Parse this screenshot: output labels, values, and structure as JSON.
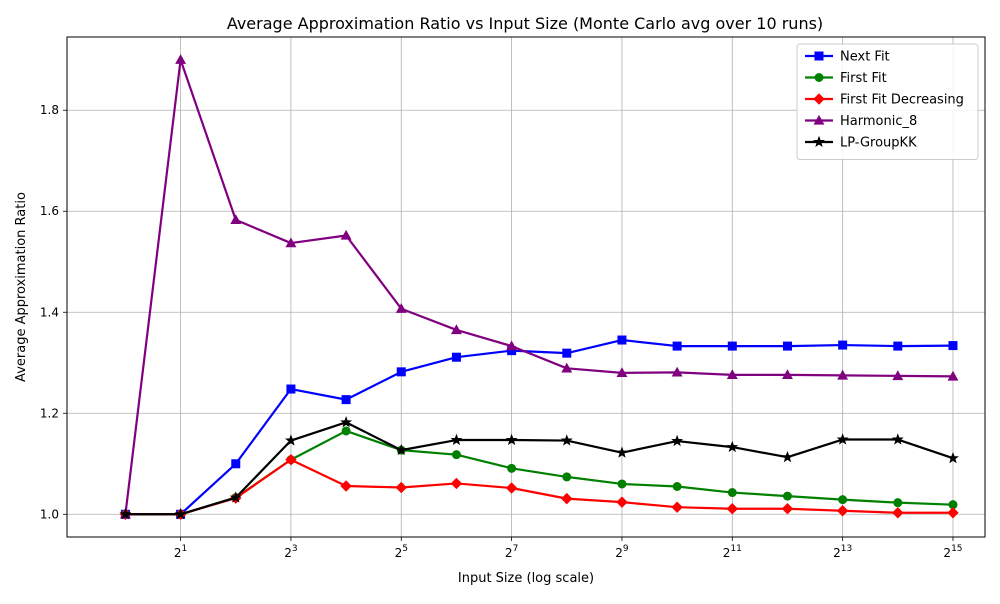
{
  "chart_data": {
    "type": "line",
    "title": "Average Approximation Ratio vs Input Size (Monte Carlo avg over 10 runs)",
    "xlabel": "Input Size (log scale)",
    "ylabel": "Average Approximation Ratio",
    "x_scale": "log2",
    "x": [
      1,
      2,
      4,
      8,
      16,
      32,
      64,
      128,
      256,
      512,
      1024,
      2048,
      4096,
      8192,
      16384,
      32768
    ],
    "xlim": [
      0.48,
      49000
    ],
    "ylim": [
      0.955,
      1.945
    ],
    "x_ticks": [
      {
        "value": 2,
        "base": "2",
        "exp": "1"
      },
      {
        "value": 8,
        "base": "2",
        "exp": "3"
      },
      {
        "value": 32,
        "base": "2",
        "exp": "5"
      },
      {
        "value": 128,
        "base": "2",
        "exp": "7"
      },
      {
        "value": 512,
        "base": "2",
        "exp": "9"
      },
      {
        "value": 2048,
        "base": "2",
        "exp": "11"
      },
      {
        "value": 8192,
        "base": "2",
        "exp": "13"
      },
      {
        "value": 32768,
        "base": "2",
        "exp": "15"
      }
    ],
    "y_ticks": [
      {
        "value": 1.0,
        "label": "1.0"
      },
      {
        "value": 1.2,
        "label": "1.2"
      },
      {
        "value": 1.4,
        "label": "1.4"
      },
      {
        "value": 1.6,
        "label": "1.6"
      },
      {
        "value": 1.8,
        "label": "1.8"
      }
    ],
    "grid": true,
    "legend_position": "top-right",
    "series": [
      {
        "name": "Next Fit",
        "color": "#0000ff",
        "marker": "square",
        "values": [
          1.0,
          1.0,
          1.1,
          1.248,
          1.227,
          1.282,
          1.311,
          1.324,
          1.319,
          1.345,
          1.333,
          1.333,
          1.333,
          1.335,
          1.333,
          1.334
        ]
      },
      {
        "name": "First Fit",
        "color": "#008000",
        "marker": "circle",
        "values": [
          1.0,
          1.0,
          1.033,
          1.108,
          1.165,
          1.127,
          1.118,
          1.091,
          1.074,
          1.06,
          1.055,
          1.043,
          1.036,
          1.029,
          1.023,
          1.019
        ]
      },
      {
        "name": "First Fit Decreasing",
        "color": "#ff0000",
        "marker": "diamond",
        "values": [
          1.0,
          1.0,
          1.032,
          1.108,
          1.056,
          1.053,
          1.061,
          1.052,
          1.031,
          1.024,
          1.014,
          1.011,
          1.011,
          1.007,
          1.003,
          1.003
        ]
      },
      {
        "name": "Harmonic_8",
        "color": "#800080",
        "marker": "triangle",
        "values": [
          1.0,
          1.9,
          1.583,
          1.537,
          1.552,
          1.407,
          1.365,
          1.333,
          1.289,
          1.28,
          1.281,
          1.276,
          1.276,
          1.275,
          1.274,
          1.273
        ]
      },
      {
        "name": "LP-GroupKK",
        "color": "#000000",
        "marker": "star",
        "values": [
          1.0,
          1.0,
          1.033,
          1.146,
          1.182,
          1.127,
          1.147,
          1.147,
          1.146,
          1.122,
          1.145,
          1.133,
          1.113,
          1.148,
          1.148,
          1.111
        ]
      }
    ]
  }
}
